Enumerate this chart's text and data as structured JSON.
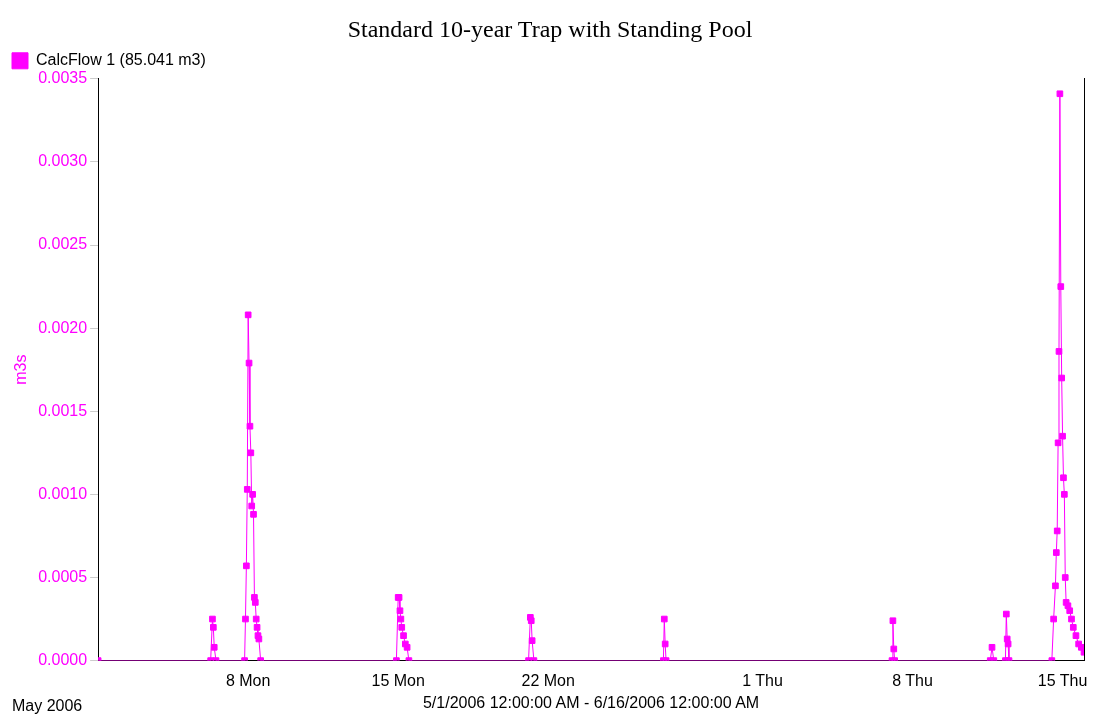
{
  "chart_data": {
    "type": "line",
    "title": "Standard 10-year Trap with Standing Pool",
    "xlabel": "5/1/2006 12:00:00 AM - 6/16/2006 12:00:00 AM",
    "ylabel": "m3s",
    "annotations": [
      "May 2006"
    ],
    "legend": "top left",
    "marker": "square",
    "line_style": "solid",
    "grid": false,
    "xlim": [
      "2006-05-01T00:00",
      "2006-06-16T00:00"
    ],
    "xticks": [
      {
        "value": "2006-05-08",
        "label": "8 Mon"
      },
      {
        "value": "2006-05-15",
        "label": "15 Mon"
      },
      {
        "value": "2006-05-22",
        "label": "22 Mon"
      },
      {
        "value": "2006-06-01",
        "label": "1 Thu"
      },
      {
        "value": "2006-06-08",
        "label": "8 Thu"
      },
      {
        "value": "2006-06-15",
        "label": "15 Thu"
      }
    ],
    "ylim": [
      0,
      0.0035
    ],
    "yticks": [
      {
        "value": 0,
        "label": "0.0000"
      },
      {
        "value": 0.0005,
        "label": "0.0005"
      },
      {
        "value": 0.001,
        "label": "0.0010"
      },
      {
        "value": 0.0015,
        "label": "0.0015"
      },
      {
        "value": 0.002,
        "label": "0.0020"
      },
      {
        "value": 0.0025,
        "label": "0.0025"
      },
      {
        "value": 0.003,
        "label": "0.0030"
      },
      {
        "value": 0.0035,
        "label": "0.0035"
      }
    ],
    "series": [
      {
        "name": "CalcFlow 1 (85.041 m3)",
        "color": "#ff00ff",
        "x": [
          "2006-05-01T00:00",
          "2006-05-06T06:00",
          "2006-05-06T08:00",
          "2006-05-06T09:00",
          "2006-05-06T10:00",
          "2006-05-06T12:00",
          "2006-05-07T20:00",
          "2006-05-07T21:00",
          "2006-05-07T22:00",
          "2006-05-07T23:00",
          "2006-05-08T00:00",
          "2006-05-08T01:00",
          "2006-05-08T02:00",
          "2006-05-08T03:00",
          "2006-05-08T04:00",
          "2006-05-08T05:00",
          "2006-05-08T06:00",
          "2006-05-08T07:00",
          "2006-05-08T08:00",
          "2006-05-08T09:00",
          "2006-05-08T10:00",
          "2006-05-08T11:00",
          "2006-05-08T12:00",
          "2006-05-08T14:00",
          "2006-05-14T22:00",
          "2006-05-15T00:00",
          "2006-05-15T01:00",
          "2006-05-15T02:00",
          "2006-05-15T03:00",
          "2006-05-15T04:00",
          "2006-05-15T06:00",
          "2006-05-15T08:00",
          "2006-05-15T10:00",
          "2006-05-15T12:00",
          "2006-05-21T02:00",
          "2006-05-21T04:00",
          "2006-05-21T05:00",
          "2006-05-21T06:00",
          "2006-05-21T08:00",
          "2006-05-27T09:00",
          "2006-05-27T10:00",
          "2006-05-27T11:00",
          "2006-05-27T12:00",
          "2006-06-07T01:00",
          "2006-06-07T02:00",
          "2006-06-07T03:00",
          "2006-06-07T04:00",
          "2006-06-11T15:00",
          "2006-06-11T17:00",
          "2006-06-11T19:00",
          "2006-06-12T08:00",
          "2006-06-12T09:00",
          "2006-06-12T10:00",
          "2006-06-12T11:00",
          "2006-06-12T12:00",
          "2006-06-14T12:00",
          "2006-06-14T14:00",
          "2006-06-14T16:00",
          "2006-06-14T17:00",
          "2006-06-14T18:00",
          "2006-06-14T19:00",
          "2006-06-14T20:00",
          "2006-06-14T21:00",
          "2006-06-14T22:00",
          "2006-06-14T23:00",
          "2006-06-15T00:00",
          "2006-06-15T01:00",
          "2006-06-15T02:00",
          "2006-06-15T03:00",
          "2006-06-15T04:00",
          "2006-06-15T06:00",
          "2006-06-15T08:00",
          "2006-06-15T10:00",
          "2006-06-15T12:00",
          "2006-06-15T15:00",
          "2006-06-15T18:00",
          "2006-06-15T21:00",
          "2006-06-16T00:00"
        ],
        "values": [
          0,
          0,
          0.00025,
          0.0002,
          8e-05,
          0,
          0,
          0.00025,
          0.00057,
          0.00103,
          0.00208,
          0.00179,
          0.00141,
          0.00125,
          0.00093,
          0.001,
          0.00088,
          0.00038,
          0.00035,
          0.00025,
          0.0002,
          0.00015,
          0.00013,
          0,
          0,
          0.00038,
          0.00038,
          0.0003,
          0.00025,
          0.0002,
          0.00015,
          0.0001,
          8e-05,
          0,
          0,
          0.00026,
          0.00024,
          0.00012,
          0,
          0,
          0.00025,
          0.0001,
          0,
          0,
          0.00024,
          7e-05,
          0,
          0,
          8e-05,
          0,
          0,
          0.00028,
          0.00013,
          0.0001,
          0,
          0,
          0.00025,
          0.00045,
          0.00065,
          0.00078,
          0.00131,
          0.00186,
          0.00341,
          0.00225,
          0.0017,
          0.00135,
          0.0011,
          0.001,
          0.0005,
          0.00035,
          0.00033,
          0.0003,
          0.00025,
          0.0002,
          0.00015,
          0.0001,
          8e-05,
          5e-05
        ]
      }
    ]
  }
}
